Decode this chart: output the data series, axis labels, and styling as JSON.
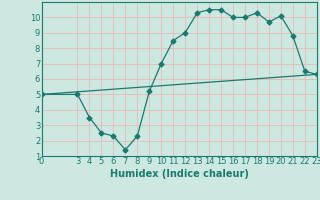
{
  "curve_x": [
    0,
    3,
    4,
    5,
    6,
    7,
    8,
    9,
    10,
    11,
    12,
    13,
    14,
    15,
    16,
    17,
    18,
    19,
    20,
    21,
    22,
    23
  ],
  "curve_y": [
    5.0,
    5.0,
    3.5,
    2.5,
    2.3,
    1.4,
    2.3,
    5.2,
    7.0,
    8.5,
    9.0,
    10.3,
    10.5,
    10.5,
    10.0,
    10.0,
    10.3,
    9.7,
    10.1,
    8.8,
    6.5,
    6.3
  ],
  "line_x": [
    0,
    23
  ],
  "line_y": [
    5.0,
    6.3
  ],
  "xlabel": "Humidex (Indice chaleur)",
  "xlim": [
    0,
    23
  ],
  "ylim": [
    1,
    11
  ],
  "yticks": [
    1,
    2,
    3,
    4,
    5,
    6,
    7,
    8,
    9,
    10
  ],
  "xticks": [
    0,
    3,
    4,
    5,
    6,
    7,
    8,
    9,
    10,
    11,
    12,
    13,
    14,
    15,
    16,
    17,
    18,
    19,
    20,
    21,
    22,
    23
  ],
  "line_color": "#1a7a6e",
  "bg_color": "#cce8e0",
  "grid_color": "#e8b8b8",
  "marker": "D",
  "markersize": 2.5,
  "tick_fontsize": 6,
  "xlabel_fontsize": 7
}
